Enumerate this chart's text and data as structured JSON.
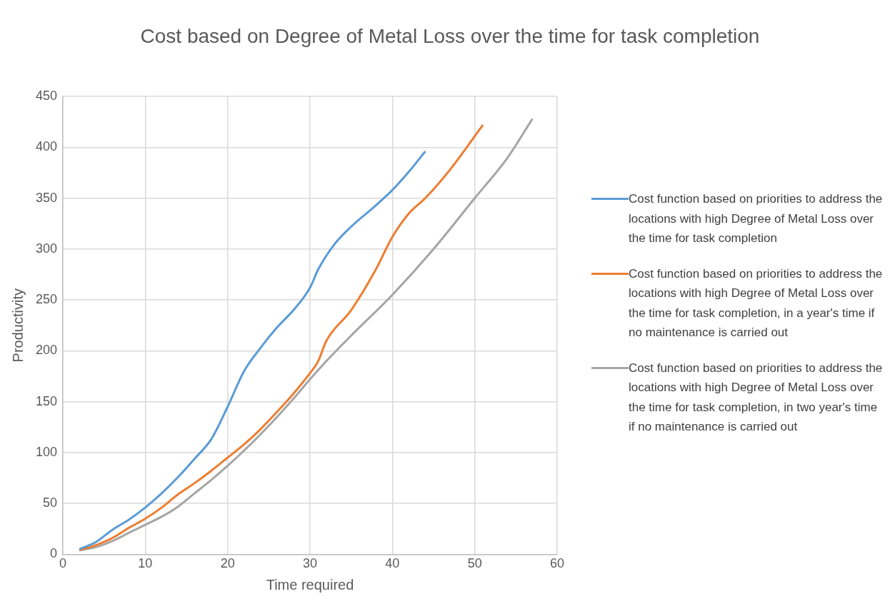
{
  "chart_data": {
    "type": "line",
    "title": "Cost based on Degree of Metal Loss over the time for task completion",
    "xlabel": "Time required",
    "ylabel": "Productivity",
    "xlim": [
      0,
      60
    ],
    "xticks": [
      0,
      10,
      20,
      30,
      40,
      50,
      60
    ],
    "ylim": [
      0,
      450
    ],
    "yticks": [
      0,
      50,
      100,
      150,
      200,
      250,
      300,
      350,
      400,
      450
    ],
    "grid": true,
    "legend": "right",
    "marker": "none",
    "line_style": "solid",
    "series": [
      {
        "name": "Cost function based on priorities to address the locations with high Degree of Metal Loss over the time for task completion",
        "color": "#5b9bd5",
        "x": [
          2,
          4,
          6,
          8,
          10,
          12,
          14,
          16,
          18,
          20,
          22,
          24,
          26,
          28,
          30,
          31,
          33,
          35,
          38,
          40,
          42,
          44
        ],
        "values": [
          5,
          12,
          24,
          34,
          46,
          60,
          76,
          94,
          113,
          145,
          180,
          203,
          223,
          240,
          262,
          280,
          305,
          322,
          343,
          358,
          376,
          396
        ]
      },
      {
        "name": "Cost function based on priorities to address the locations with high Degree of Metal Loss over the  time for task completion, in a year's time if no maintenance is carried out",
        "color": "#ed7d31",
        "x": [
          2,
          4,
          6,
          8,
          10,
          12,
          14,
          16,
          18,
          20,
          22,
          24,
          26,
          28,
          30,
          31,
          32,
          35,
          38,
          40,
          42,
          44,
          47,
          51
        ],
        "values": [
          4,
          9,
          16,
          26,
          35,
          46,
          59,
          70,
          82,
          95,
          108,
          123,
          140,
          158,
          178,
          190,
          210,
          240,
          280,
          312,
          335,
          350,
          378,
          422
        ]
      },
      {
        "name": "Cost function based on priorities to address the locations with high Degree of Metal Loss over the time for task completion, in two year's time if no maintenance is carried out",
        "color": "#a5a5a5",
        "x": [
          2,
          4,
          6,
          8,
          10,
          12,
          14,
          16,
          18,
          20,
          22,
          24,
          26,
          28,
          30,
          32,
          35,
          40,
          45,
          50,
          54,
          57
        ],
        "values": [
          4,
          7,
          13,
          21,
          29,
          37,
          47,
          60,
          73,
          87,
          102,
          118,
          135,
          153,
          172,
          190,
          215,
          255,
          300,
          350,
          390,
          428
        ]
      }
    ]
  }
}
